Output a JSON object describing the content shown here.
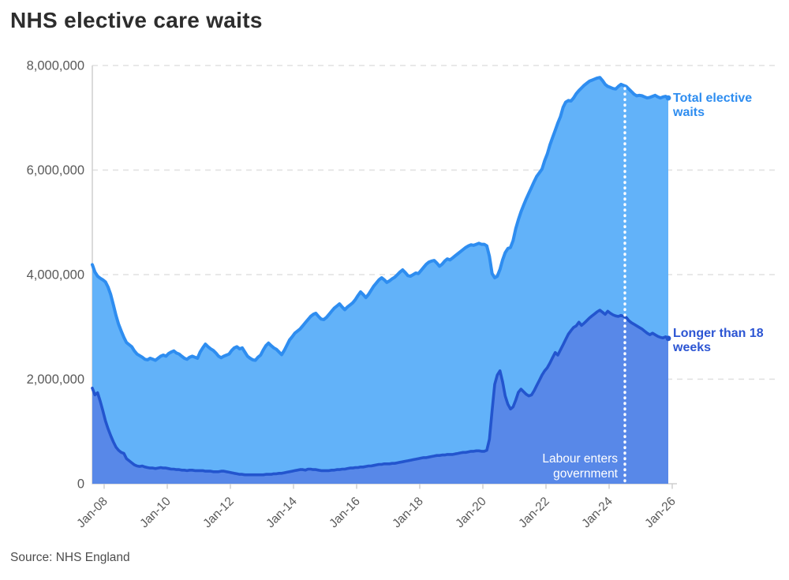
{
  "header": {
    "title": "NHS elective care waits"
  },
  "footer": {
    "source": "Source: NHS England"
  },
  "labels": {
    "total_line1": "Total elective",
    "total_line2": "waits",
    "breach_line1": "Longer than 18",
    "breach_line2": "weeks"
  },
  "annotation": {
    "line1": "Labour enters",
    "line2": "government",
    "x_year": 2024.5
  },
  "colors": {
    "total_fill": "#62B2F9",
    "total_stroke": "#2E8DF0",
    "breach_fill": "#5888E8",
    "breach_stroke": "#2355CE",
    "total_label": "#2E8DF0",
    "breach_label": "#2C55D3",
    "grid": "#E0E0E0",
    "axis": "#CFCFCF",
    "tick_text": "#595959",
    "title_text": "#2D2D2D",
    "event_line": "#FFFFFF"
  },
  "chart_data": {
    "type": "area",
    "title": "NHS elective care waits",
    "xlabel": "",
    "ylabel": "",
    "x_start": 2007.625,
    "x_step_years": 0.0833333,
    "x_tick_years": [
      2008,
      2010,
      2012,
      2014,
      2016,
      2018,
      2020,
      2022,
      2024,
      2026
    ],
    "x_tick_labels": [
      "Jan-08",
      "Jan-10",
      "Jan-12",
      "Jan-14",
      "Jan-16",
      "Jan-18",
      "Jan-20",
      "Jan-22",
      "Jan-24",
      "Jan-26"
    ],
    "y_ticks": [
      0,
      2000000,
      4000000,
      6000000,
      8000000
    ],
    "y_tick_labels": [
      "0",
      "2,000,000",
      "4,000,000",
      "6,000,000",
      "8,000,000"
    ],
    "ylim": [
      0,
      8000000
    ],
    "grid": "dashed-horizontal",
    "legend_position": "right-of-line-ends",
    "event_annotation": {
      "label": "Labour enters government",
      "x_year": 2024.5
    },
    "series": [
      {
        "name": "Total elective waits",
        "values_millions": [
          4.19,
          4.05,
          3.97,
          3.93,
          3.9,
          3.86,
          3.76,
          3.62,
          3.42,
          3.22,
          3.05,
          2.92,
          2.8,
          2.7,
          2.66,
          2.62,
          2.54,
          2.48,
          2.45,
          2.42,
          2.38,
          2.37,
          2.4,
          2.38,
          2.36,
          2.4,
          2.44,
          2.46,
          2.44,
          2.49,
          2.52,
          2.54,
          2.5,
          2.48,
          2.44,
          2.4,
          2.38,
          2.42,
          2.44,
          2.42,
          2.4,
          2.52,
          2.6,
          2.67,
          2.62,
          2.58,
          2.55,
          2.5,
          2.44,
          2.41,
          2.44,
          2.46,
          2.48,
          2.55,
          2.6,
          2.62,
          2.58,
          2.6,
          2.52,
          2.44,
          2.4,
          2.37,
          2.36,
          2.42,
          2.46,
          2.56,
          2.64,
          2.69,
          2.64,
          2.6,
          2.57,
          2.52,
          2.47,
          2.55,
          2.65,
          2.75,
          2.81,
          2.88,
          2.92,
          2.96,
          3.02,
          3.08,
          3.14,
          3.2,
          3.24,
          3.26,
          3.2,
          3.15,
          3.14,
          3.18,
          3.24,
          3.3,
          3.36,
          3.4,
          3.44,
          3.38,
          3.33,
          3.38,
          3.42,
          3.46,
          3.52,
          3.6,
          3.67,
          3.62,
          3.56,
          3.62,
          3.7,
          3.78,
          3.84,
          3.9,
          3.94,
          3.9,
          3.85,
          3.88,
          3.92,
          3.95,
          4.0,
          4.05,
          4.09,
          4.04,
          3.98,
          3.97,
          4.0,
          4.03,
          4.02,
          4.08,
          4.14,
          4.2,
          4.24,
          4.26,
          4.27,
          4.22,
          4.16,
          4.2,
          4.26,
          4.3,
          4.28,
          4.32,
          4.36,
          4.4,
          4.44,
          4.48,
          4.52,
          4.55,
          4.57,
          4.56,
          4.58,
          4.6,
          4.58,
          4.58,
          4.55,
          4.35,
          4.02,
          3.94,
          3.97,
          4.1,
          4.28,
          4.42,
          4.5,
          4.52,
          4.65,
          4.88,
          5.05,
          5.2,
          5.33,
          5.45,
          5.56,
          5.67,
          5.78,
          5.88,
          5.95,
          6.02,
          6.18,
          6.31,
          6.48,
          6.62,
          6.76,
          6.9,
          7.02,
          7.2,
          7.3,
          7.33,
          7.32,
          7.38,
          7.46,
          7.52,
          7.57,
          7.62,
          7.66,
          7.7,
          7.72,
          7.74,
          7.76,
          7.77,
          7.71,
          7.64,
          7.6,
          7.58,
          7.56,
          7.55,
          7.6,
          7.64,
          7.62,
          7.6,
          7.55,
          7.5,
          7.45,
          7.42,
          7.43,
          7.42,
          7.4,
          7.38,
          7.39,
          7.41,
          7.43,
          7.4,
          7.38,
          7.4,
          7.41,
          7.38
        ]
      },
      {
        "name": "Longer than 18 weeks",
        "values_millions": [
          1.83,
          1.7,
          1.74,
          1.58,
          1.4,
          1.2,
          1.05,
          0.92,
          0.8,
          0.7,
          0.64,
          0.6,
          0.58,
          0.48,
          0.44,
          0.4,
          0.36,
          0.34,
          0.33,
          0.34,
          0.32,
          0.31,
          0.3,
          0.3,
          0.29,
          0.3,
          0.31,
          0.3,
          0.3,
          0.29,
          0.28,
          0.28,
          0.27,
          0.27,
          0.26,
          0.26,
          0.25,
          0.26,
          0.26,
          0.25,
          0.25,
          0.25,
          0.25,
          0.24,
          0.24,
          0.24,
          0.23,
          0.23,
          0.23,
          0.24,
          0.24,
          0.23,
          0.22,
          0.21,
          0.2,
          0.19,
          0.18,
          0.18,
          0.17,
          0.17,
          0.17,
          0.17,
          0.17,
          0.17,
          0.17,
          0.17,
          0.18,
          0.18,
          0.18,
          0.19,
          0.19,
          0.2,
          0.2,
          0.21,
          0.22,
          0.23,
          0.24,
          0.25,
          0.26,
          0.27,
          0.27,
          0.26,
          0.28,
          0.28,
          0.27,
          0.27,
          0.26,
          0.25,
          0.25,
          0.25,
          0.25,
          0.26,
          0.26,
          0.27,
          0.27,
          0.28,
          0.28,
          0.29,
          0.3,
          0.3,
          0.31,
          0.31,
          0.32,
          0.32,
          0.33,
          0.34,
          0.34,
          0.35,
          0.36,
          0.37,
          0.37,
          0.38,
          0.38,
          0.38,
          0.39,
          0.39,
          0.4,
          0.41,
          0.42,
          0.43,
          0.44,
          0.45,
          0.46,
          0.47,
          0.48,
          0.49,
          0.5,
          0.5,
          0.51,
          0.52,
          0.53,
          0.54,
          0.54,
          0.55,
          0.55,
          0.56,
          0.56,
          0.56,
          0.57,
          0.58,
          0.59,
          0.6,
          0.6,
          0.61,
          0.62,
          0.62,
          0.63,
          0.63,
          0.62,
          0.62,
          0.64,
          0.85,
          1.4,
          1.9,
          2.08,
          2.16,
          1.95,
          1.68,
          1.52,
          1.43,
          1.47,
          1.6,
          1.75,
          1.81,
          1.76,
          1.71,
          1.68,
          1.7,
          1.78,
          1.88,
          1.98,
          2.08,
          2.16,
          2.22,
          2.31,
          2.41,
          2.51,
          2.46,
          2.56,
          2.66,
          2.76,
          2.86,
          2.93,
          2.99,
          3.02,
          3.09,
          3.03,
          3.07,
          3.12,
          3.17,
          3.21,
          3.25,
          3.29,
          3.32,
          3.28,
          3.24,
          3.3,
          3.26,
          3.23,
          3.21,
          3.2,
          3.22,
          3.2,
          3.18,
          3.12,
          3.08,
          3.05,
          3.02,
          2.99,
          2.96,
          2.92,
          2.88,
          2.85,
          2.88,
          2.85,
          2.82,
          2.8,
          2.79,
          2.81,
          2.78
        ]
      }
    ]
  }
}
